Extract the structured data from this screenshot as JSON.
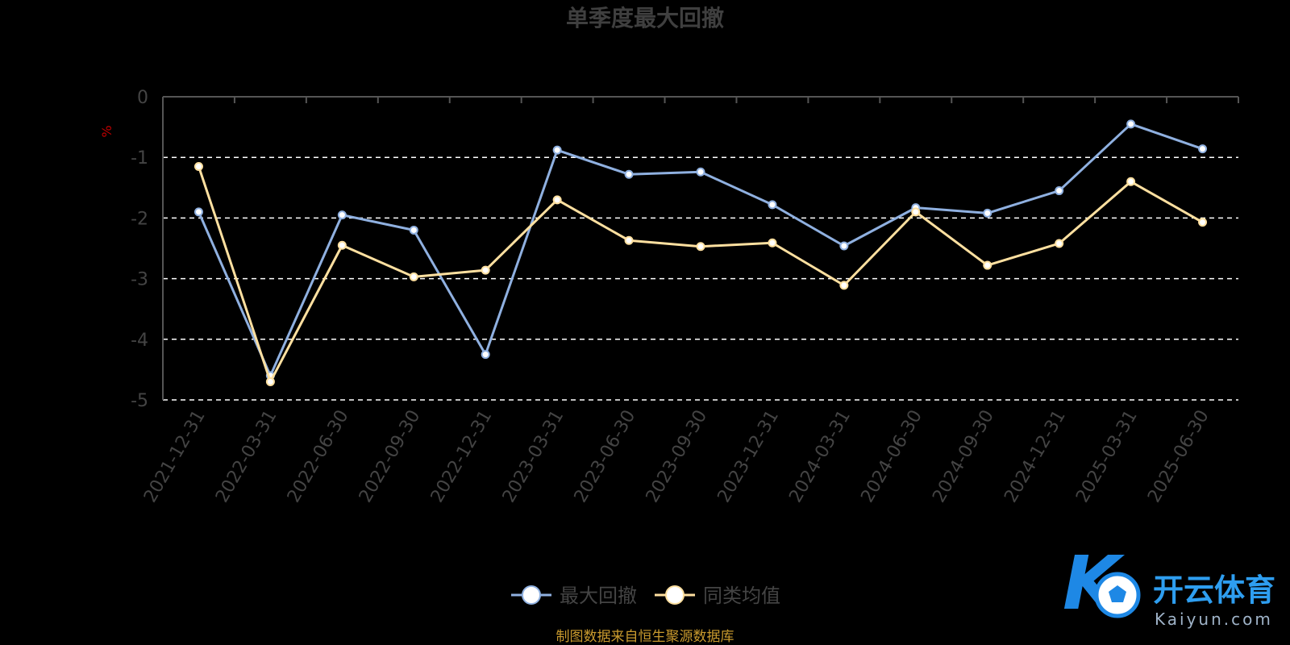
{
  "chart_data": {
    "type": "line",
    "title": "单季度最大回撤",
    "ylabel": "%",
    "ylim": [
      -5,
      0
    ],
    "yticks": [
      0,
      -1,
      -2,
      -3,
      -4,
      -5
    ],
    "grid": true,
    "legend_position": "bottom",
    "categories": [
      "2021-12-31",
      "2022-03-31",
      "2022-06-30",
      "2022-09-30",
      "2022-12-31",
      "2023-03-31",
      "2023-06-30",
      "2023-09-30",
      "2023-12-31",
      "2024-03-31",
      "2024-06-30",
      "2024-09-30",
      "2024-12-31",
      "2025-03-31",
      "2025-06-30"
    ],
    "series": [
      {
        "name": "最大回撤",
        "color": "#8fb0e0",
        "values": [
          -1.9,
          -4.6,
          -1.95,
          -2.2,
          -4.25,
          -0.88,
          -1.28,
          -1.24,
          -1.78,
          -2.46,
          -1.83,
          -1.92,
          -1.55,
          -0.45,
          -0.86
        ]
      },
      {
        "name": "同类均值",
        "color": "#ffe0a0",
        "values": [
          -1.15,
          -4.7,
          -2.45,
          -2.97,
          -2.86,
          -1.7,
          -2.37,
          -2.47,
          -2.41,
          -3.11,
          -1.9,
          -2.78,
          -2.42,
          -1.4,
          -2.07
        ]
      }
    ]
  },
  "source_text": "制图数据来自恒生聚源数据库",
  "logo": {
    "name": "开云体育",
    "url": "Kaiyun.com",
    "mark": "K"
  },
  "colors": {
    "background": "#000000",
    "axis": "#555555",
    "grid": "#ffffff",
    "unit": "#c00000",
    "source": "#c99a2e"
  }
}
